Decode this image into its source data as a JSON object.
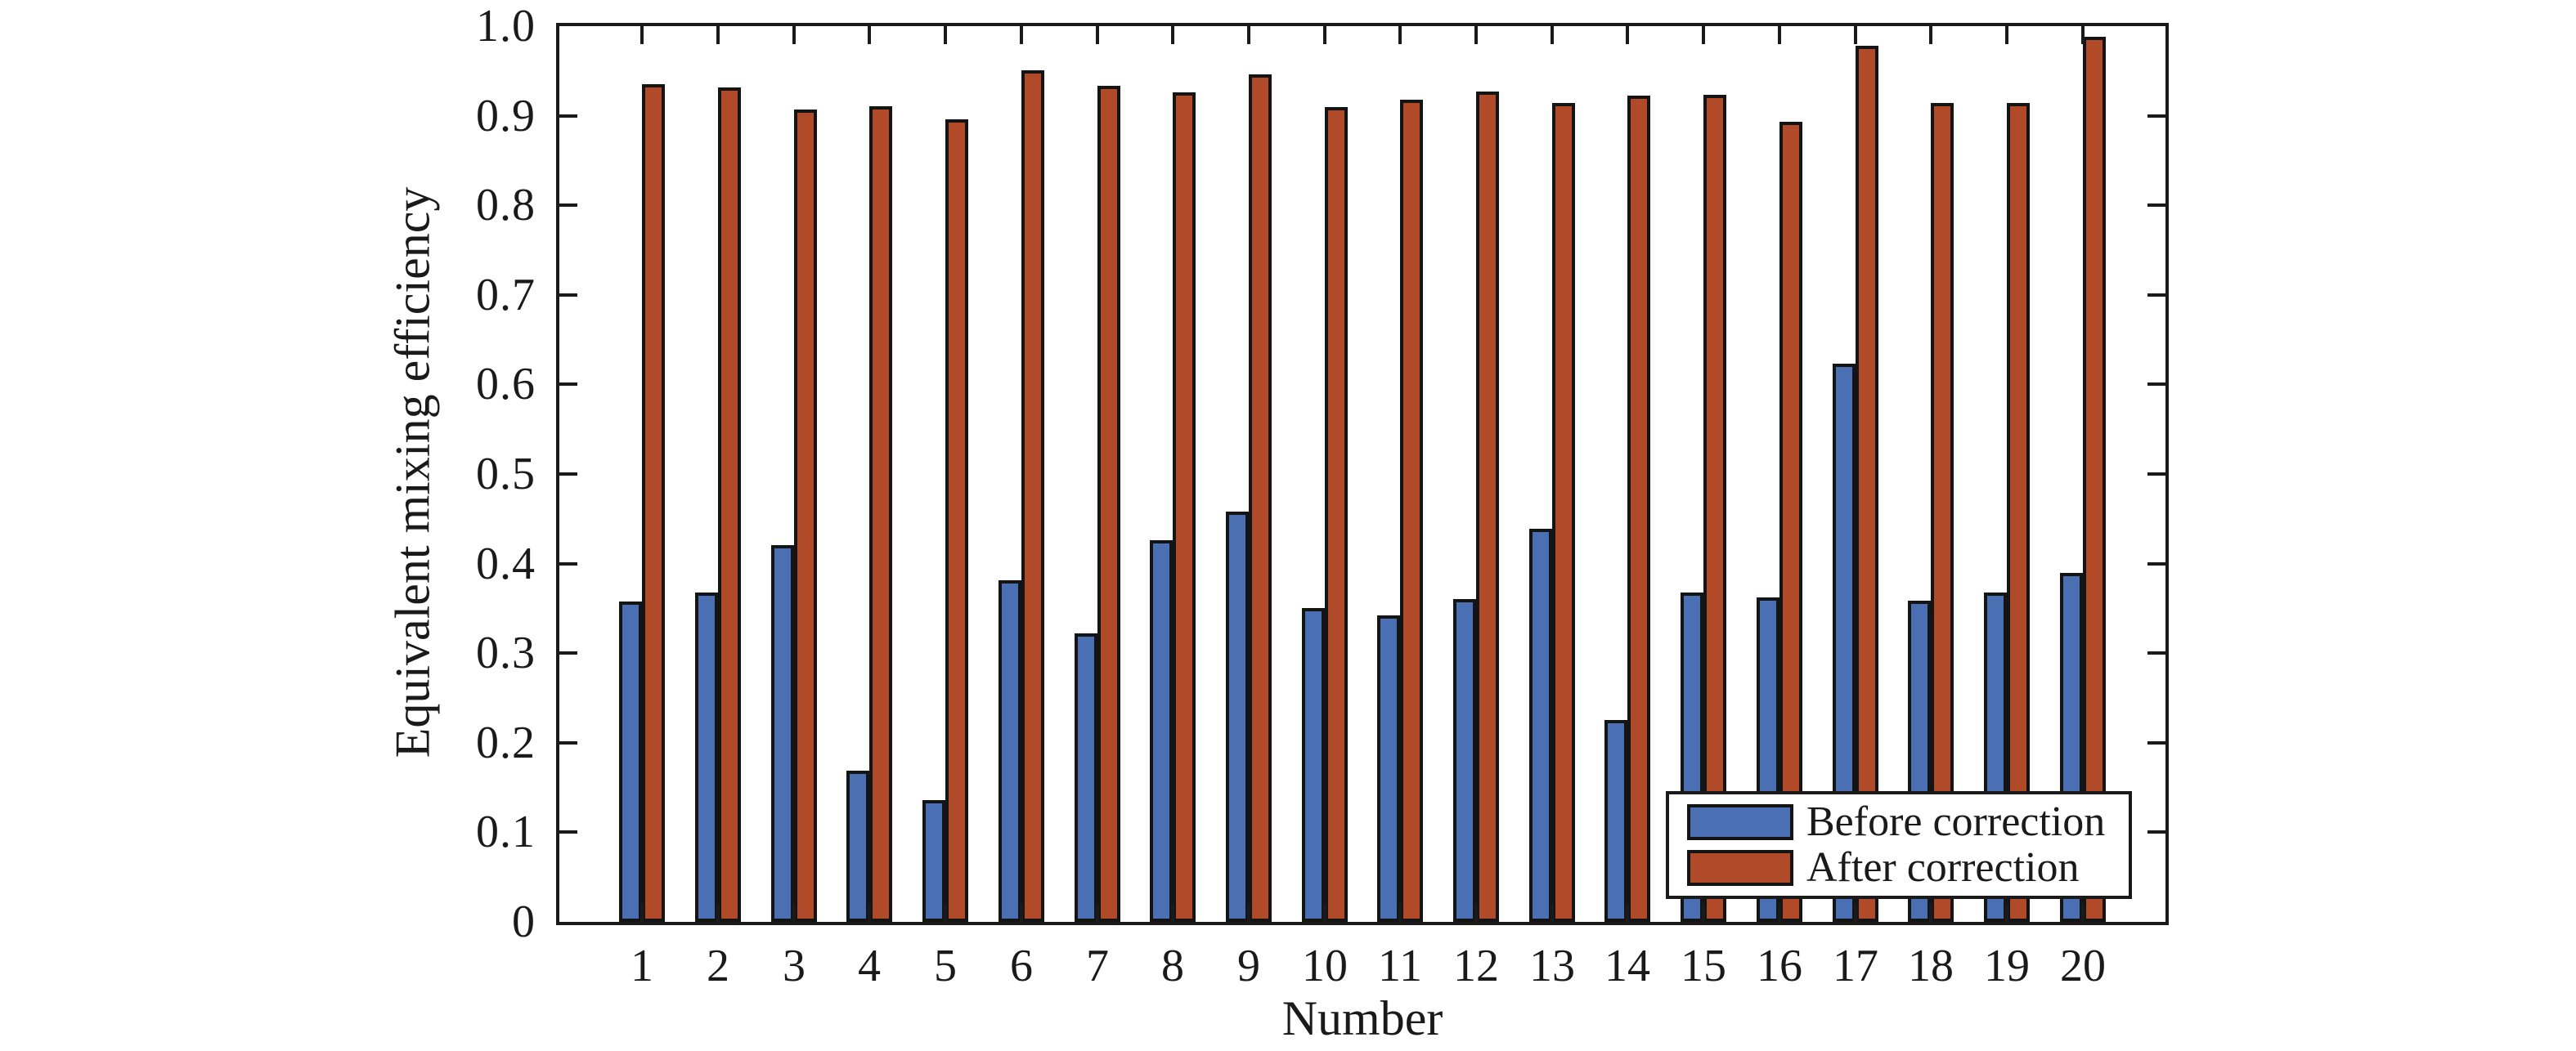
{
  "chart_data": {
    "type": "bar",
    "title": "",
    "xlabel": "Number",
    "ylabel": "Equivalent mixing efficiency",
    "ylim": [
      0,
      1.0
    ],
    "ytick_labels": [
      "0",
      "0.1",
      "0.2",
      "0.3",
      "0.4",
      "0.5",
      "0.6",
      "0.7",
      "0.8",
      "0.9",
      "1.0"
    ],
    "categories": [
      "1",
      "2",
      "3",
      "4",
      "5",
      "6",
      "7",
      "8",
      "9",
      "10",
      "11",
      "12",
      "13",
      "14",
      "15",
      "16",
      "17",
      "18",
      "19",
      "20"
    ],
    "grid": false,
    "legend_position": "inside lower right",
    "series": [
      {
        "name": "Before correction",
        "key": "before-correction",
        "color": "#4a6fb3",
        "values": [
          0.358,
          0.368,
          0.421,
          0.169,
          0.136,
          0.381,
          0.322,
          0.426,
          0.458,
          0.35,
          0.342,
          0.36,
          0.439,
          0.225,
          0.368,
          0.362,
          0.623,
          0.359,
          0.368,
          0.39
        ]
      },
      {
        "name": "After correction",
        "key": "after-correction",
        "color": "#b04a29",
        "values": [
          0.935,
          0.932,
          0.907,
          0.911,
          0.896,
          0.951,
          0.933,
          0.926,
          0.946,
          0.91,
          0.918,
          0.927,
          0.914,
          0.922,
          0.923,
          0.893,
          0.978,
          0.914,
          0.914,
          0.988
        ]
      }
    ],
    "bar_edge_color": "#141414",
    "axis_color": "#1a1a1a",
    "background_color": "#ffffff"
  }
}
